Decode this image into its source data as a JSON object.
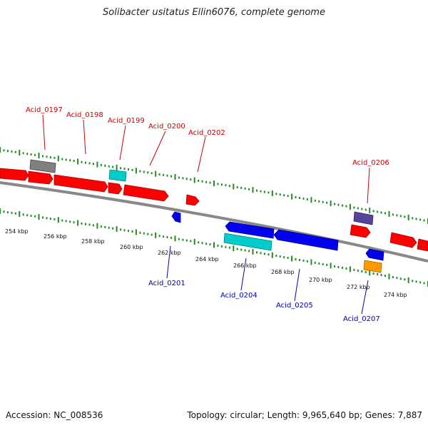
{
  "title": "Solibacter usitatus Ellin6076, complete genome",
  "accession": "Accession: NC_008536",
  "topology": "Topology: circular; Length: 9,965,640 bp; Genes: 7,887",
  "colors": {
    "forward": "#ff0000",
    "reverse": "#0000ee",
    "grey": "#808080",
    "cyan": "#00cccc",
    "purple": "#554499",
    "orange": "#ff9900",
    "backbone": "#888888",
    "dots": "#228b22",
    "label_fwd": "#cc0000",
    "label_rev": "#0000aa"
  },
  "tick_labels": [
    "254 kbp",
    "256 kbp",
    "258 kbp",
    "260 kbp",
    "262 kbp",
    "264 kbp",
    "266 kbp",
    "268 kbp",
    "270 kbp",
    "272 kbp",
    "274 kbp"
  ],
  "forward_labels": [
    "Acid_0197",
    "Acid_0198",
    "Acid_0199",
    "Acid_0200",
    "Acid_0202",
    "Acid_0206"
  ],
  "reverse_labels": [
    "Acid_0201",
    "Acid_0204",
    "Acid_0205",
    "Acid_0207"
  ]
}
